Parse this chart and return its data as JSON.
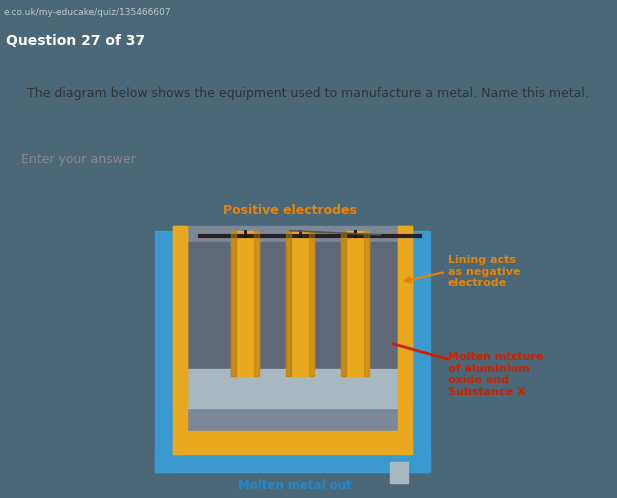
{
  "url_text": "e.co.uk/my-educake/quiz/135466607",
  "question_label": "Question 27 of 37",
  "question_text": "The diagram below shows the equipment used to manufacture a metal. Name this metal.",
  "answer_placeholder": "Enter your answer",
  "label_positive": "Positive electrodes",
  "label_lining": "Lining acts\nas negative\nelectrode",
  "label_molten_mix": "Molten mixture\nof aluminium\noxide and\nSubstance X",
  "label_molten_out": "Molten metal out",
  "color_bg_top": "#4a6878",
  "color_url_bar": "#3a5060",
  "color_white_box": "#f0f0ee",
  "color_answer_box": "#e8e8e6",
  "color_diagram_bg": "#8a9898",
  "color_blue": "#3a9ad0",
  "color_orange": "#e8a820",
  "color_dark_gray": "#606878",
  "color_mid_gray": "#7a8898",
  "color_light_gray_blue": "#a8b8c0",
  "color_electrode_bar": "#2a2020",
  "color_label_positive": "#e8830a",
  "color_label_lining": "#e8830a",
  "color_label_molten_mix": "#cc2200",
  "color_label_molten_out": "#2288cc",
  "color_arrow_lining": "#e8830a",
  "color_arrow_molten": "#cc2200",
  "color_wire": "#1a1010"
}
